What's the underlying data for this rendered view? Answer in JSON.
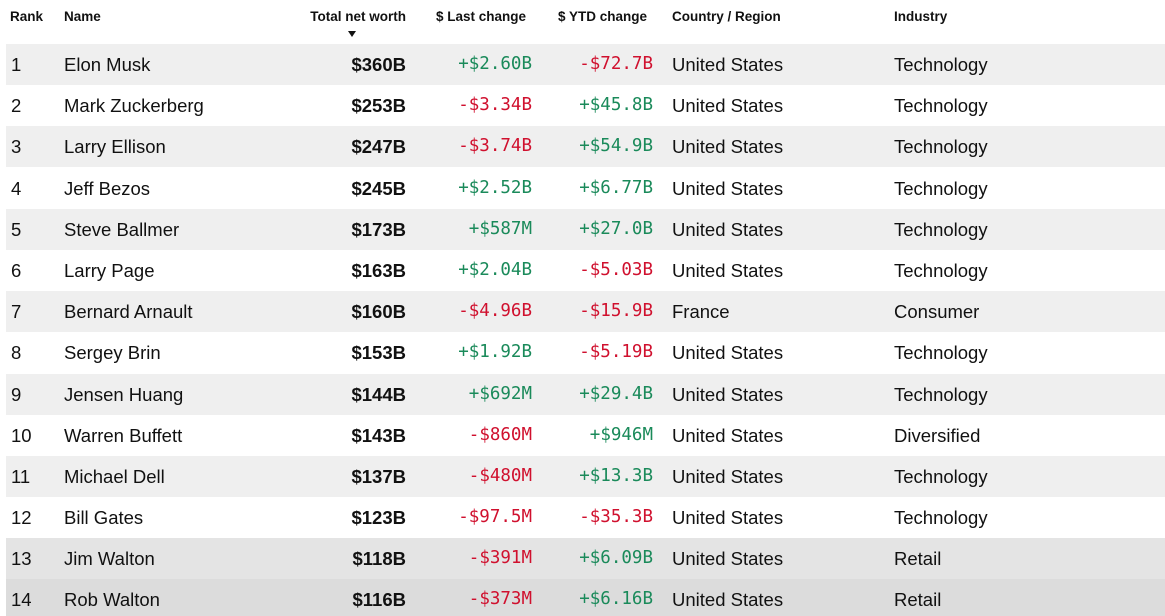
{
  "table": {
    "headers": {
      "rank": "Rank",
      "name": "Name",
      "worth": "Total net worth",
      "last": "$ Last change",
      "ytd": "$ YTD change",
      "country": "Country / Region",
      "industry": "Industry"
    },
    "colors": {
      "positive": "#1a8a5a",
      "negative": "#d0102e"
    },
    "rows": [
      {
        "rank": "1",
        "name": "Elon Musk",
        "worth": "$360B",
        "last": "+$2.60B",
        "ytd": "-$72.7B",
        "country": "United States",
        "industry": "Technology"
      },
      {
        "rank": "2",
        "name": "Mark Zuckerberg",
        "worth": "$253B",
        "last": "-$3.34B",
        "ytd": "+$45.8B",
        "country": "United States",
        "industry": "Technology"
      },
      {
        "rank": "3",
        "name": "Larry Ellison",
        "worth": "$247B",
        "last": "-$3.74B",
        "ytd": "+$54.9B",
        "country": "United States",
        "industry": "Technology"
      },
      {
        "rank": "4",
        "name": "Jeff Bezos",
        "worth": "$245B",
        "last": "+$2.52B",
        "ytd": "+$6.77B",
        "country": "United States",
        "industry": "Technology"
      },
      {
        "rank": "5",
        "name": "Steve Ballmer",
        "worth": "$173B",
        "last": "+$587M",
        "ytd": "+$27.0B",
        "country": "United States",
        "industry": "Technology"
      },
      {
        "rank": "6",
        "name": "Larry Page",
        "worth": "$163B",
        "last": "+$2.04B",
        "ytd": "-$5.03B",
        "country": "United States",
        "industry": "Technology"
      },
      {
        "rank": "7",
        "name": "Bernard Arnault",
        "worth": "$160B",
        "last": "-$4.96B",
        "ytd": "-$15.9B",
        "country": "France",
        "industry": "Consumer"
      },
      {
        "rank": "8",
        "name": "Sergey Brin",
        "worth": "$153B",
        "last": "+$1.92B",
        "ytd": "-$5.19B",
        "country": "United States",
        "industry": "Technology"
      },
      {
        "rank": "9",
        "name": "Jensen Huang",
        "worth": "$144B",
        "last": "+$692M",
        "ytd": "+$29.4B",
        "country": "United States",
        "industry": "Technology"
      },
      {
        "rank": "10",
        "name": "Warren Buffett",
        "worth": "$143B",
        "last": "-$860M",
        "ytd": "+$946M",
        "country": "United States",
        "industry": "Diversified"
      },
      {
        "rank": "11",
        "name": "Michael Dell",
        "worth": "$137B",
        "last": "-$480M",
        "ytd": "+$13.3B",
        "country": "United States",
        "industry": "Technology"
      },
      {
        "rank": "12",
        "name": "Bill Gates",
        "worth": "$123B",
        "last": "-$97.5M",
        "ytd": "-$35.3B",
        "country": "United States",
        "industry": "Technology"
      },
      {
        "rank": "13",
        "name": "Jim Walton",
        "worth": "$118B",
        "last": "-$391M",
        "ytd": "+$6.09B",
        "country": "United States",
        "industry": "Retail"
      },
      {
        "rank": "14",
        "name": "Rob Walton",
        "worth": "$116B",
        "last": "-$373M",
        "ytd": "+$6.16B",
        "country": "United States",
        "industry": "Retail"
      }
    ]
  }
}
